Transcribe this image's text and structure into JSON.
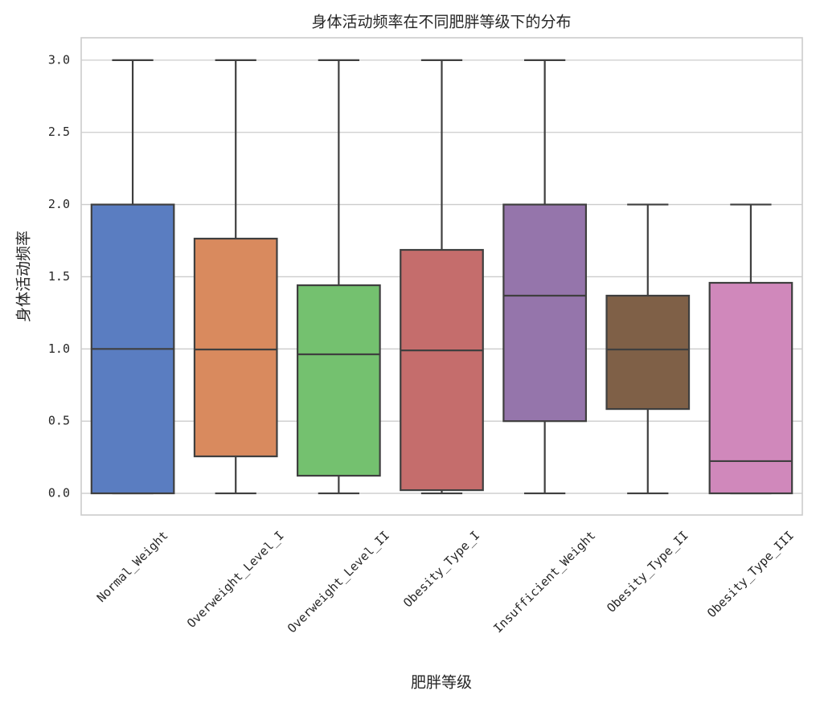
{
  "chart_data": {
    "type": "box",
    "title": "身体活动频率在不同肥胖等级下的分布",
    "xlabel": "肥胖等级",
    "ylabel": "身体活动频率",
    "categories": [
      "Normal_Weight",
      "Overweight_Level_I",
      "Overweight_Level_II",
      "Obesity_Type_I",
      "Insufficient_Weight",
      "Obesity_Type_II",
      "Obesity_Type_III"
    ],
    "boxes": [
      {
        "min": 0,
        "q1": 0,
        "median": 1.0,
        "q3": 2.0,
        "max": 3.0
      },
      {
        "min": 0,
        "q1": 0.256,
        "median": 0.996,
        "q3": 1.764,
        "max": 3.0
      },
      {
        "min": 0,
        "q1": 0.122,
        "median": 0.963,
        "q3": 1.441,
        "max": 3.0
      },
      {
        "min": 0,
        "q1": 0.022,
        "median": 0.99,
        "q3": 1.686,
        "max": 3.0
      },
      {
        "min": 0,
        "q1": 0.5,
        "median": 1.369,
        "q3": 2.0,
        "max": 3.0
      },
      {
        "min": 0,
        "q1": 0.584,
        "median": 0.996,
        "q3": 1.369,
        "max": 2.0
      },
      {
        "min": 0,
        "q1": 0,
        "median": 0.223,
        "q3": 1.458,
        "max": 2.0
      }
    ],
    "colors": [
      "#5a7dc1",
      "#d98a5e",
      "#74c16f",
      "#c56d6c",
      "#9575ab",
      "#7f6047",
      "#d088bb"
    ],
    "ylim": [
      -0.15,
      3.155
    ],
    "yticks": [
      {
        "value": 0,
        "label": "0.0"
      },
      0.5,
      {
        "value": 1,
        "label": "1.0"
      },
      1.5,
      {
        "value": 2,
        "label": "2.0"
      },
      2.5,
      {
        "value": 3,
        "label": "3.0"
      }
    ],
    "grid": true
  }
}
